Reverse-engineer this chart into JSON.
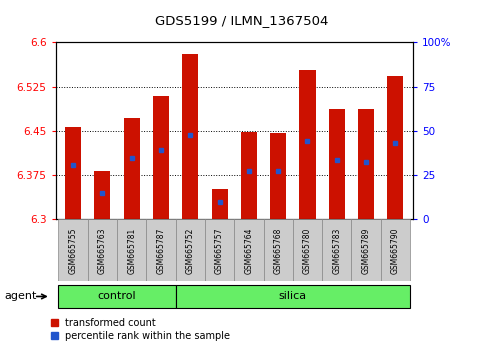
{
  "title": "GDS5199 / ILMN_1367504",
  "samples": [
    "GSM665755",
    "GSM665763",
    "GSM665781",
    "GSM665787",
    "GSM665752",
    "GSM665757",
    "GSM665764",
    "GSM665768",
    "GSM665780",
    "GSM665783",
    "GSM665789",
    "GSM665790"
  ],
  "bar_tops": [
    6.456,
    6.382,
    6.472,
    6.51,
    6.58,
    6.352,
    6.448,
    6.446,
    6.553,
    6.487,
    6.487,
    6.543
  ],
  "bar_bottom": 6.3,
  "blue_vals": [
    6.393,
    6.345,
    6.405,
    6.418,
    6.443,
    6.33,
    6.382,
    6.382,
    6.433,
    6.4,
    6.397,
    6.43
  ],
  "ylim_left": [
    6.3,
    6.6
  ],
  "ylim_right": [
    0,
    100
  ],
  "yticks_left": [
    6.3,
    6.375,
    6.45,
    6.525,
    6.6
  ],
  "yticks_right": [
    0,
    25,
    50,
    75,
    100
  ],
  "bar_color": "#cc1100",
  "blue_color": "#2255cc",
  "group_bg": "#66ee66",
  "bar_width": 0.55,
  "legend_red": "transformed count",
  "legend_blue": "percentile rank within the sample",
  "agent_label": "agent",
  "n_control": 4,
  "n_silica": 8
}
